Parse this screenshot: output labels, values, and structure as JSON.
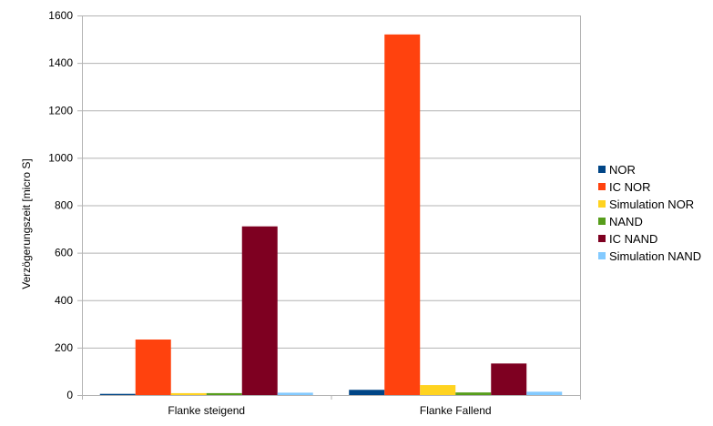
{
  "chart_data": {
    "type": "bar",
    "title": "",
    "xlabel": "",
    "ylabel": "Verzögerungszeit [micro S]",
    "categories": [
      "Flanke steigend",
      "Flanke Fallend"
    ],
    "ylim": [
      0,
      1600
    ],
    "yticks": [
      0,
      200,
      400,
      600,
      800,
      1000,
      1200,
      1400,
      1600
    ],
    "grid": true,
    "legend_position": "right",
    "series": [
      {
        "name": "NOR",
        "color": "#004586",
        "values": [
          5,
          22
        ]
      },
      {
        "name": "IC NOR",
        "color": "#ff420e",
        "values": [
          234,
          1520
        ]
      },
      {
        "name": "Simulation NOR",
        "color": "#ffd320",
        "values": [
          8,
          42
        ]
      },
      {
        "name": "NAND",
        "color": "#579d1c",
        "values": [
          8,
          11
        ]
      },
      {
        "name": "IC NAND",
        "color": "#7e0021",
        "values": [
          711,
          133
        ]
      },
      {
        "name": "Simulation NAND",
        "color": "#83caff",
        "values": [
          10,
          14
        ]
      }
    ]
  }
}
